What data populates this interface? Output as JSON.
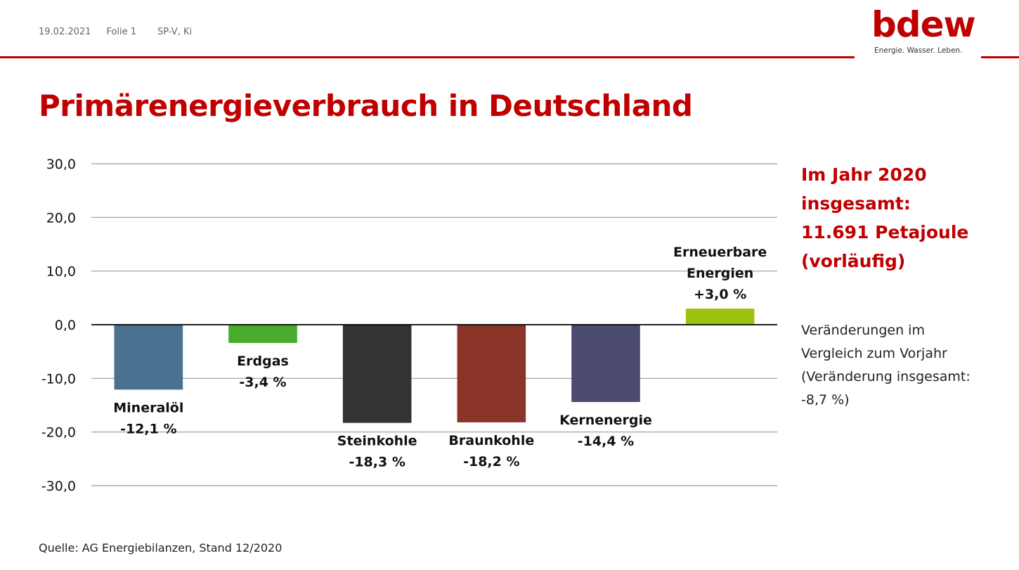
{
  "header": {
    "date": "19.02.2021",
    "slide": "Folie 1",
    "author": "SP-V, Ki"
  },
  "logo": {
    "name": "bdew",
    "tagline": "Energie. Wasser. Leben."
  },
  "title": "Primärenergieverbrauch in Deutschland",
  "summary": {
    "lines": [
      "Im Jahr 2020",
      "insgesamt:",
      "11.691 Petajoule",
      "(vorläufig)"
    ]
  },
  "note": {
    "lines": [
      "Veränderungen im",
      "Vergleich zum Vorjahr",
      "(Veränderung insgesamt:",
      "-8,7 %)"
    ]
  },
  "source": "Quelle: AG Energiebilanzen, Stand 12/2020",
  "colors": {
    "accent": "#c00000",
    "gridline": "#999999"
  },
  "chart_data": {
    "type": "bar",
    "title": "",
    "xlabel": "",
    "ylabel": "",
    "ylim": [
      -30,
      30
    ],
    "yticks": [
      30,
      20,
      10,
      0,
      -10,
      -20,
      -30
    ],
    "ytick_labels": [
      "30,0",
      "20,0",
      "10,0",
      "0,0",
      "-10,0",
      "-20,0",
      "-30,0"
    ],
    "grid": true,
    "categories": [
      "Mineralöl",
      "Erdgas",
      "Steinkohle",
      "Braunkohle",
      "Kernenergie",
      "Erneuerbare Energien"
    ],
    "values": [
      -12.1,
      -3.4,
      -18.3,
      -18.2,
      -14.4,
      3.0
    ],
    "value_labels": [
      "-12,1 %",
      "-3,4 %",
      "-18,3 %",
      "-18,2 %",
      "-14,4 %",
      "+3,0 %"
    ],
    "colors": [
      "#4a7190",
      "#4aac2c",
      "#333333",
      "#8b3528",
      "#4b4a70",
      "#9dc30f"
    ]
  }
}
